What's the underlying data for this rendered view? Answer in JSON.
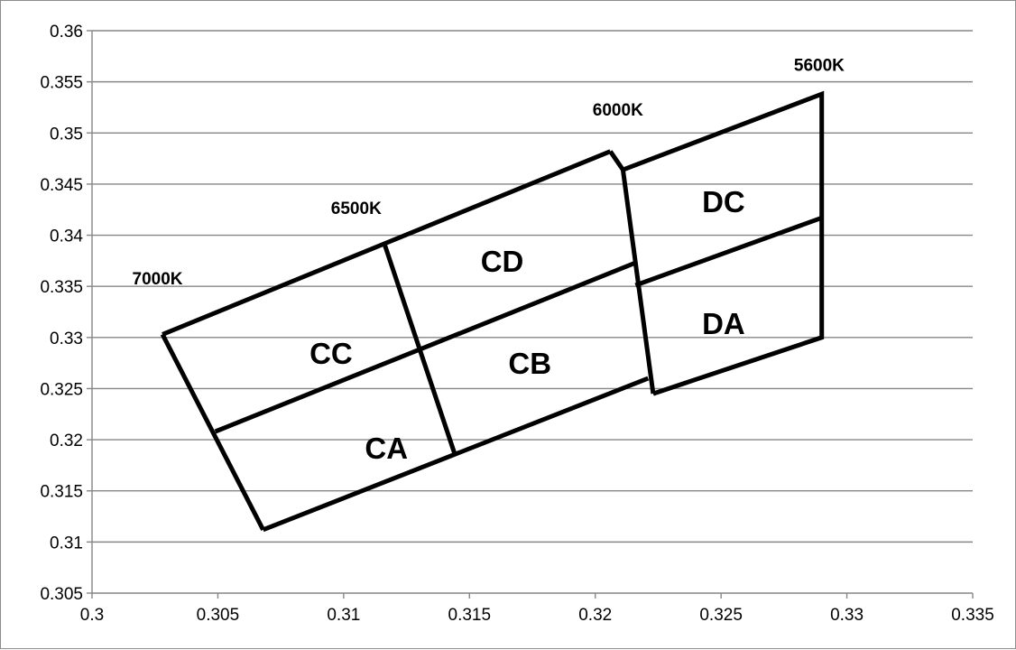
{
  "chart_data": {
    "type": "scatter",
    "title": "",
    "xlabel": "",
    "ylabel": "",
    "xlim": [
      0.3,
      0.335
    ],
    "ylim": [
      0.305,
      0.36
    ],
    "x_ticks": [
      0.3,
      0.305,
      0.31,
      0.315,
      0.32,
      0.325,
      0.33,
      0.335
    ],
    "y_ticks": [
      0.305,
      0.31,
      0.315,
      0.32,
      0.325,
      0.33,
      0.335,
      0.34,
      0.345,
      0.35,
      0.355,
      0.36
    ],
    "x_tick_labels": [
      "0.3",
      "0.305",
      "0.31",
      "0.315",
      "0.32",
      "0.325",
      "0.33",
      "0.335"
    ],
    "y_tick_labels": [
      "0.305",
      "0.31",
      "0.315",
      "0.32",
      "0.325",
      "0.33",
      "0.335",
      "0.34",
      "0.345",
      "0.35",
      "0.355",
      "0.36"
    ],
    "grid": {
      "horizontal": true,
      "vertical": false
    },
    "legend": "none",
    "line_color": "#000000",
    "grid_color": "#868686",
    "boundary_lines": [
      {
        "points": [
          [
            0.3028,
            0.3303
          ],
          [
            0.3206,
            0.3482
          ]
        ]
      },
      {
        "points": [
          [
            0.3211,
            0.3464
          ],
          [
            0.329,
            0.3538
          ],
          [
            0.329,
            0.33
          ],
          [
            0.3223,
            0.3245
          ]
        ]
      },
      {
        "points": [
          [
            0.3049,
            0.3208
          ],
          [
            0.3216,
            0.3373
          ]
        ]
      },
      {
        "points": [
          [
            0.3216,
            0.3351
          ],
          [
            0.329,
            0.3417
          ]
        ]
      },
      {
        "points": [
          [
            0.3068,
            0.3112
          ],
          [
            0.3221,
            0.326
          ]
        ]
      },
      {
        "points": [
          [
            0.3028,
            0.3303
          ],
          [
            0.3068,
            0.3112
          ]
        ]
      },
      {
        "points": [
          [
            0.3116,
            0.3393
          ],
          [
            0.3144,
            0.3187
          ]
        ]
      },
      {
        "points": [
          [
            0.3206,
            0.3482
          ],
          [
            0.3211,
            0.3464
          ],
          [
            0.3223,
            0.3245
          ]
        ]
      }
    ],
    "region_labels": [
      {
        "text": "CC",
        "x": 0.3095,
        "y": 0.3285
      },
      {
        "text": "CA",
        "x": 0.3117,
        "y": 0.3192
      },
      {
        "text": "CD",
        "x": 0.3163,
        "y": 0.3375
      },
      {
        "text": "CB",
        "x": 0.3174,
        "y": 0.3275
      },
      {
        "text": "DC",
        "x": 0.3251,
        "y": 0.3433
      },
      {
        "text": "DA",
        "x": 0.3251,
        "y": 0.3314
      }
    ],
    "cct_labels": [
      {
        "text": "7000K",
        "x": 0.3026,
        "y": 0.3358
      },
      {
        "text": "6500K",
        "x": 0.3105,
        "y": 0.3427
      },
      {
        "text": "6000K",
        "x": 0.3209,
        "y": 0.3523
      },
      {
        "text": "5600K",
        "x": 0.3289,
        "y": 0.3567
      }
    ]
  }
}
